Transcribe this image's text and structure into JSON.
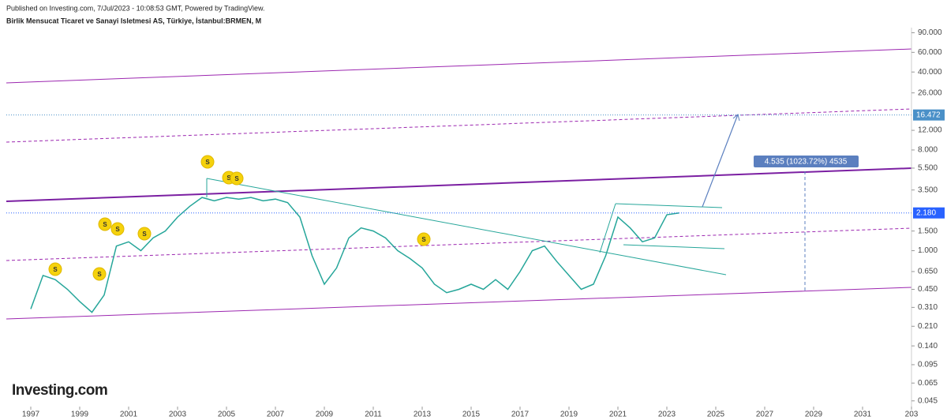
{
  "chart_data": {
    "type": "line",
    "header": "Published on Investing.com, 7/Jul/2023 - 10:08:53 GMT, Powered by TradingView.",
    "title": "Birlik Mensucat Ticaret ve Sanayi Isletmesi AS, Türkiye, İstanbul:BRMEN, M",
    "brand": "Investing.com",
    "log_scale": true,
    "x": [
      1997.0,
      1997.5,
      1998.0,
      1998.5,
      1999.0,
      1999.5,
      2000.0,
      2000.5,
      2001.0,
      2001.5,
      2002.0,
      2002.5,
      2003.0,
      2003.5,
      2004.0,
      2004.5,
      2005.0,
      2005.5,
      2006.0,
      2006.5,
      2007.0,
      2007.5,
      2008.0,
      2008.5,
      2009.0,
      2009.5,
      2010.0,
      2010.5,
      2011.0,
      2011.5,
      2012.0,
      2012.5,
      2013.0,
      2013.5,
      2014.0,
      2014.5,
      2015.0,
      2015.5,
      2016.0,
      2016.5,
      2017.0,
      2017.5,
      2018.0,
      2018.5,
      2019.0,
      2019.5,
      2020.0,
      2020.5,
      2021.0,
      2021.5,
      2022.0,
      2022.5,
      2023.0,
      2023.5
    ],
    "series": [
      {
        "color": "#26a69a",
        "values": [
          0.3,
          0.6,
          0.55,
          0.45,
          0.35,
          0.28,
          0.4,
          1.1,
          1.2,
          1.0,
          1.3,
          1.5,
          2.0,
          2.5,
          3.0,
          2.8,
          3.0,
          2.9,
          3.0,
          2.8,
          2.9,
          2.7,
          2.0,
          0.9,
          0.5,
          0.7,
          1.3,
          1.6,
          1.5,
          1.3,
          1.0,
          0.85,
          0.7,
          0.5,
          0.42,
          0.45,
          0.5,
          0.45,
          0.55,
          0.45,
          0.65,
          1.0,
          1.1,
          0.8,
          0.6,
          0.45,
          0.5,
          0.9,
          2.0,
          1.6,
          1.2,
          1.3,
          2.1,
          2.18
        ]
      }
    ],
    "xlim": [
      1996,
      2033
    ],
    "xticks": [
      1997,
      1999,
      2001,
      2003,
      2005,
      2007,
      2009,
      2011,
      2013,
      2015,
      2017,
      2019,
      2021,
      2023,
      2025,
      2027,
      2029,
      2031,
      {
        "value": 2033,
        "label": "203"
      }
    ],
    "ylim": [
      0.04,
      100
    ],
    "yticks": [
      {
        "value": 90,
        "label": "90.000"
      },
      {
        "value": 60,
        "label": "60.000"
      },
      {
        "value": 40,
        "label": "40.000"
      },
      {
        "value": 26,
        "label": "26.000"
      },
      {
        "value": 12,
        "label": "12.000"
      },
      {
        "value": 8,
        "label": "8.000"
      },
      {
        "value": 5.5,
        "label": "5.500"
      },
      {
        "value": 3.5,
        "label": "3.500"
      },
      {
        "value": 1.5,
        "label": "1.500"
      },
      {
        "value": 1,
        "label": "1.000"
      },
      {
        "value": 0.65,
        "label": "0.650"
      },
      {
        "value": 0.45,
        "label": "0.450"
      },
      {
        "value": 0.31,
        "label": "0.310"
      },
      {
        "value": 0.21,
        "label": "0.210"
      },
      {
        "value": 0.14,
        "label": "0.140"
      },
      {
        "value": 0.095,
        "label": "0.095"
      },
      {
        "value": 0.065,
        "label": "0.065"
      },
      {
        "value": 0.045,
        "label": "0.045"
      }
    ],
    "price_labels": [
      {
        "value": 2.18,
        "label": "2.180",
        "color": "#2962ff"
      },
      {
        "value": 16.472,
        "label": "16.472",
        "color": "#4a90c8"
      }
    ],
    "measure_label": "4.535 (1023.72%) 4535",
    "dividend_label": "S"
  }
}
